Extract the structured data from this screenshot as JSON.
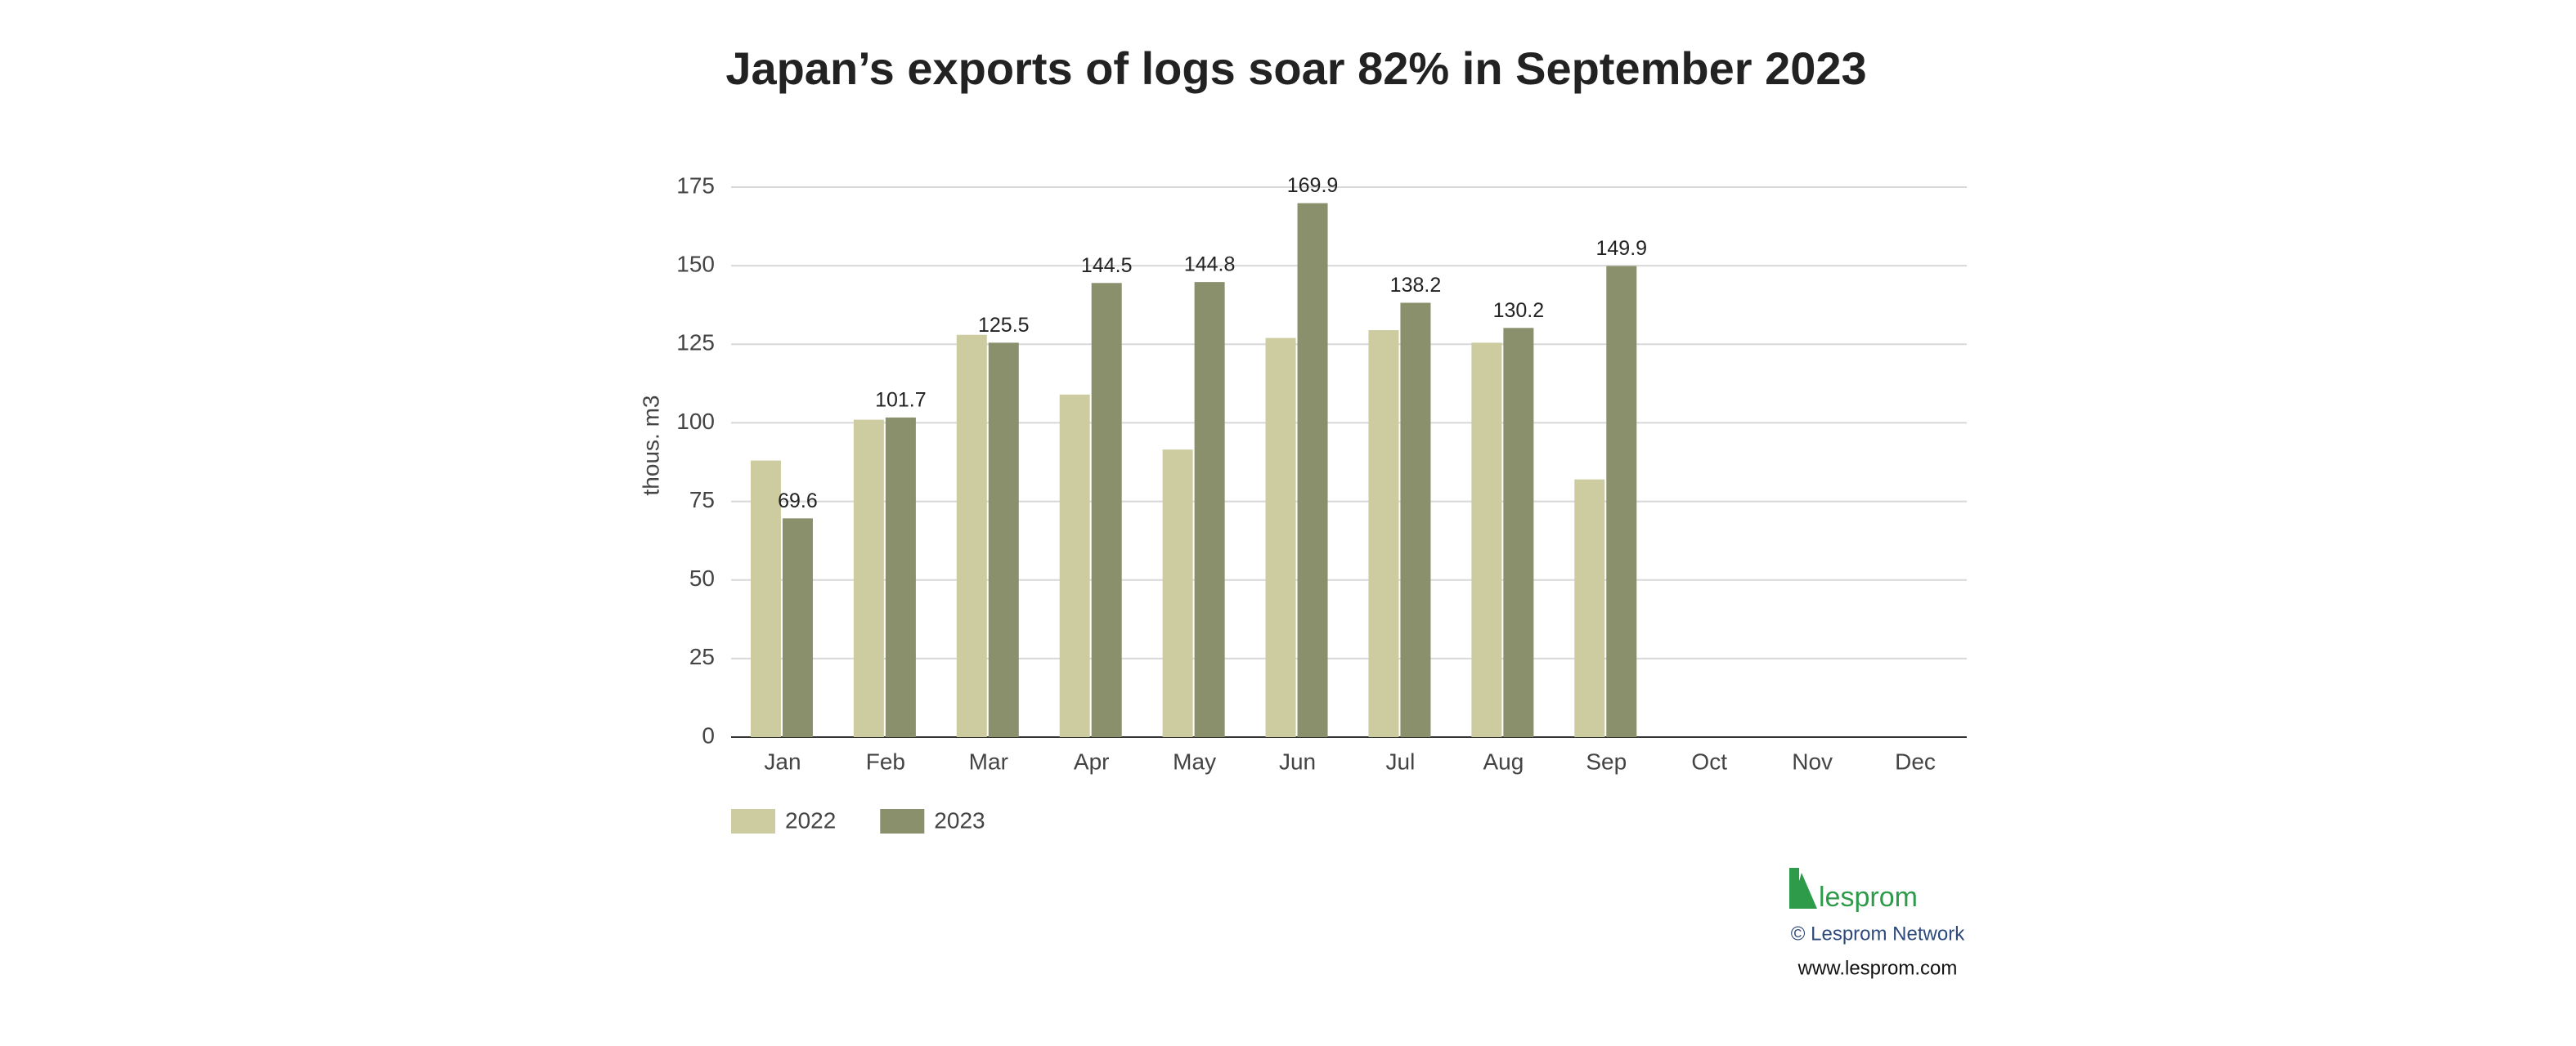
{
  "chart_data": {
    "type": "bar",
    "title": "Japan’s exports of logs soar 82% in September 2023",
    "y_label": "thous. m3",
    "categories": [
      "Jan",
      "Feb",
      "Mar",
      "Apr",
      "May",
      "Jun",
      "Jul",
      "Aug",
      "Sep",
      "Oct",
      "Nov",
      "Dec"
    ],
    "series": [
      {
        "name": "2022",
        "color": "#cdcca0",
        "show_labels": false,
        "values": [
          88,
          101,
          128,
          109,
          91.5,
          127,
          129.5,
          125.5,
          82,
          null,
          null,
          null
        ]
      },
      {
        "name": "2023",
        "color": "#8a8f6c",
        "show_labels": true,
        "values": [
          69.6,
          101.7,
          125.5,
          144.5,
          144.8,
          169.9,
          138.2,
          130.2,
          149.9,
          null,
          null,
          null
        ]
      }
    ],
    "ylim": [
      0,
      175
    ],
    "yticks": [
      0,
      25,
      50,
      75,
      100,
      125,
      150,
      175
    ],
    "grid": true,
    "legend": "bottom-left",
    "logo": "lesprom",
    "copyright": "© Lesprom Network",
    "website": "www.lesprom.com"
  }
}
